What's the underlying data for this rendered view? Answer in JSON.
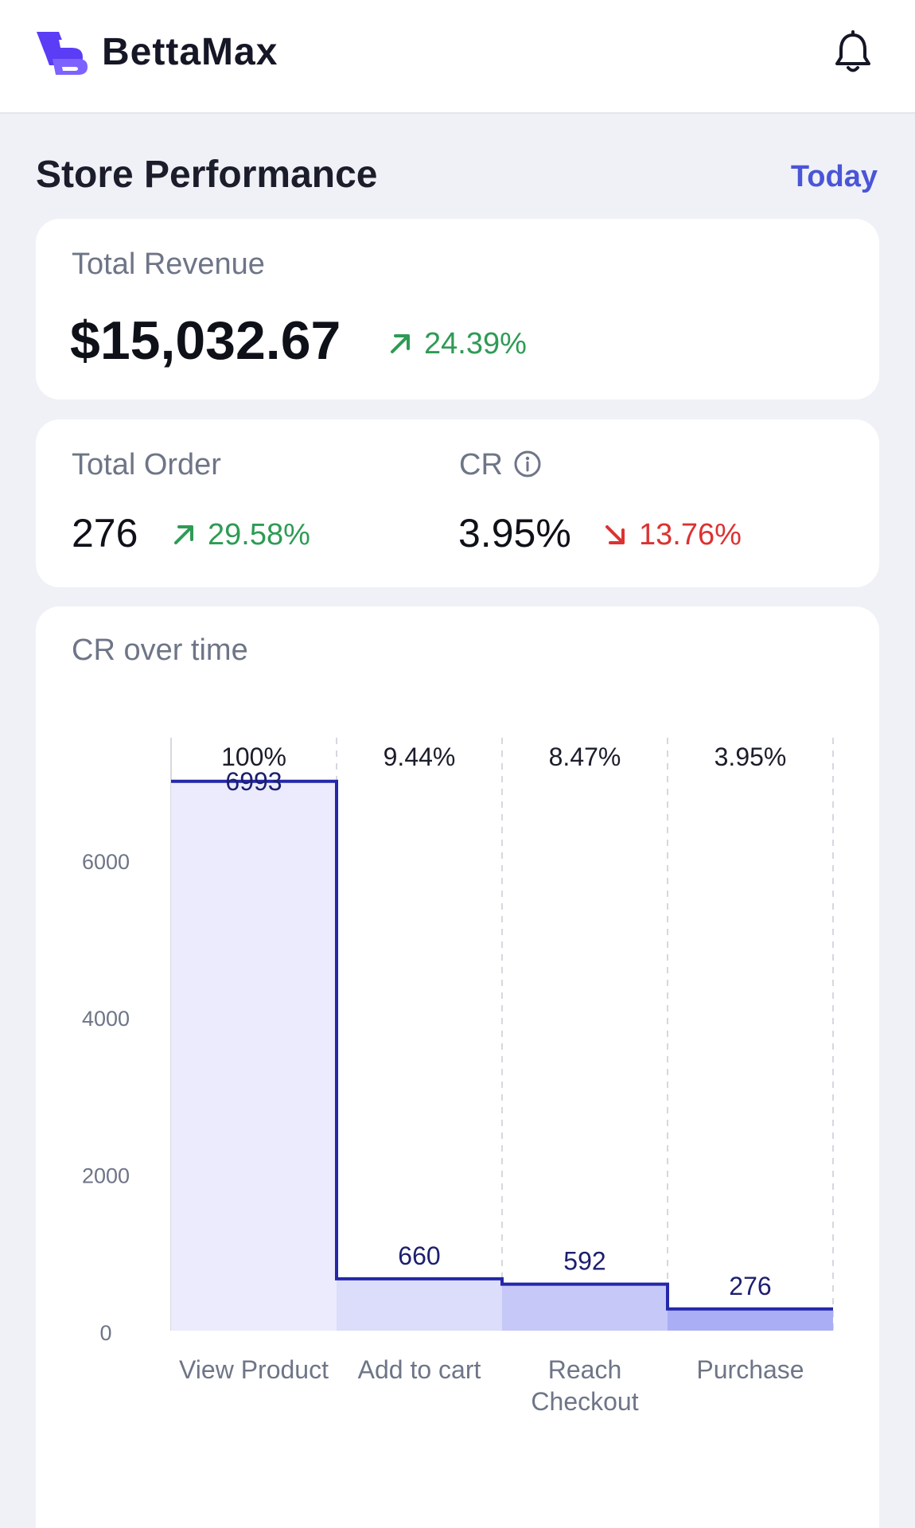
{
  "app": {
    "brand_name": "BettaMax",
    "brand_color": "#5b3df5",
    "icons": {
      "logo": "bettamax-logo-icon",
      "notifications": "bell-icon"
    }
  },
  "header": {
    "title": "Store Performance",
    "period": "Today"
  },
  "revenue": {
    "label": "Total Revenue",
    "value": "$15,032.67",
    "delta": "24.39%",
    "delta_direction": "up"
  },
  "orders": {
    "label": "Total Order",
    "value": "276",
    "delta": "29.58%",
    "delta_direction": "up"
  },
  "cr": {
    "label": "CR",
    "value": "3.95%",
    "delta": "13.76%",
    "delta_direction": "down",
    "info_icon": "info-icon"
  },
  "colors": {
    "accent": "#4a55d8",
    "positive": "#2e9b55",
    "negative": "#dc3232",
    "funnel_line": "#2327a8"
  },
  "chart_data": {
    "type": "bar",
    "title": "CR over time",
    "categories": [
      "View Product",
      "Add to cart",
      "Reach Checkout",
      "Purchase"
    ],
    "category_lines": [
      [
        "View Product"
      ],
      [
        "Add to cart"
      ],
      [
        "Reach",
        "Checkout"
      ],
      [
        "Purchase"
      ]
    ],
    "values": [
      6993,
      660,
      592,
      276
    ],
    "value_labels": [
      "6993",
      "660",
      "592",
      "276"
    ],
    "percent_labels": [
      "100%",
      "9.44%",
      "8.47%",
      "3.95%"
    ],
    "y_ticks": [
      0,
      2000,
      4000,
      6000
    ],
    "y_tick_labels": [
      "0",
      "2000",
      "4000",
      "6000"
    ],
    "ylim": [
      0,
      7700
    ],
    "fill_colors": [
      "#ebebfd",
      "#dcdcfb",
      "#c6c8f8",
      "#aaaef4"
    ],
    "xlabel": "",
    "ylabel": ""
  }
}
